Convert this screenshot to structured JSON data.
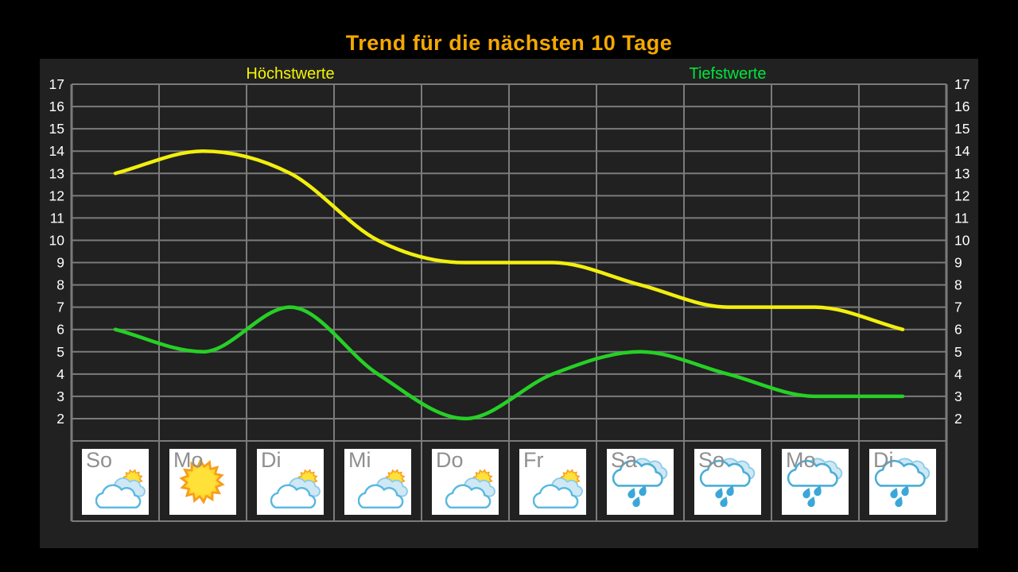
{
  "title": "Trend für die nächsten 10 Tage",
  "chart_data": {
    "type": "line",
    "title": "Trend für die nächsten 10 Tage",
    "categories": [
      "So",
      "Mo",
      "Di",
      "Mi",
      "Do",
      "Fr",
      "Sa",
      "So",
      "Mo",
      "Di"
    ],
    "series": [
      {
        "name": "Höchstwerte",
        "color": "#f2ef0e",
        "values": [
          13,
          14,
          13,
          10,
          9,
          9,
          8,
          7,
          7,
          6
        ]
      },
      {
        "name": "Tiefstwerte",
        "color": "#26d026",
        "values": [
          6,
          5,
          7,
          4,
          2,
          4,
          5,
          4,
          3,
          3
        ]
      }
    ],
    "day_icons": [
      "partly-cloudy",
      "sunny",
      "partly-cloudy",
      "partly-cloudy",
      "partly-cloudy",
      "partly-cloudy",
      "rain",
      "rain",
      "rain",
      "rain"
    ],
    "ylabel": "",
    "xlabel": "",
    "ylim": [
      1,
      17
    ],
    "yticks": [
      17,
      16,
      15,
      14,
      13,
      12,
      11,
      10,
      9,
      8,
      7,
      6,
      5,
      4,
      3,
      2
    ],
    "grid": true,
    "legend_position": "top-inside"
  },
  "colors": {
    "background": "#000000",
    "panel": "#212121",
    "grid": "#7b7b7b",
    "tick_text": "#ffffff",
    "title": "#f5a800",
    "high_label": "#f5f500",
    "low_label": "#00e63c",
    "day_label": "#8f8f8f",
    "tile_bg": "#ffffff",
    "sun_ray": "#f79d1e",
    "sun_core": "#ffe13a",
    "cloud_stroke": "#4aaed6",
    "raindrop": "#3aa7d8"
  }
}
